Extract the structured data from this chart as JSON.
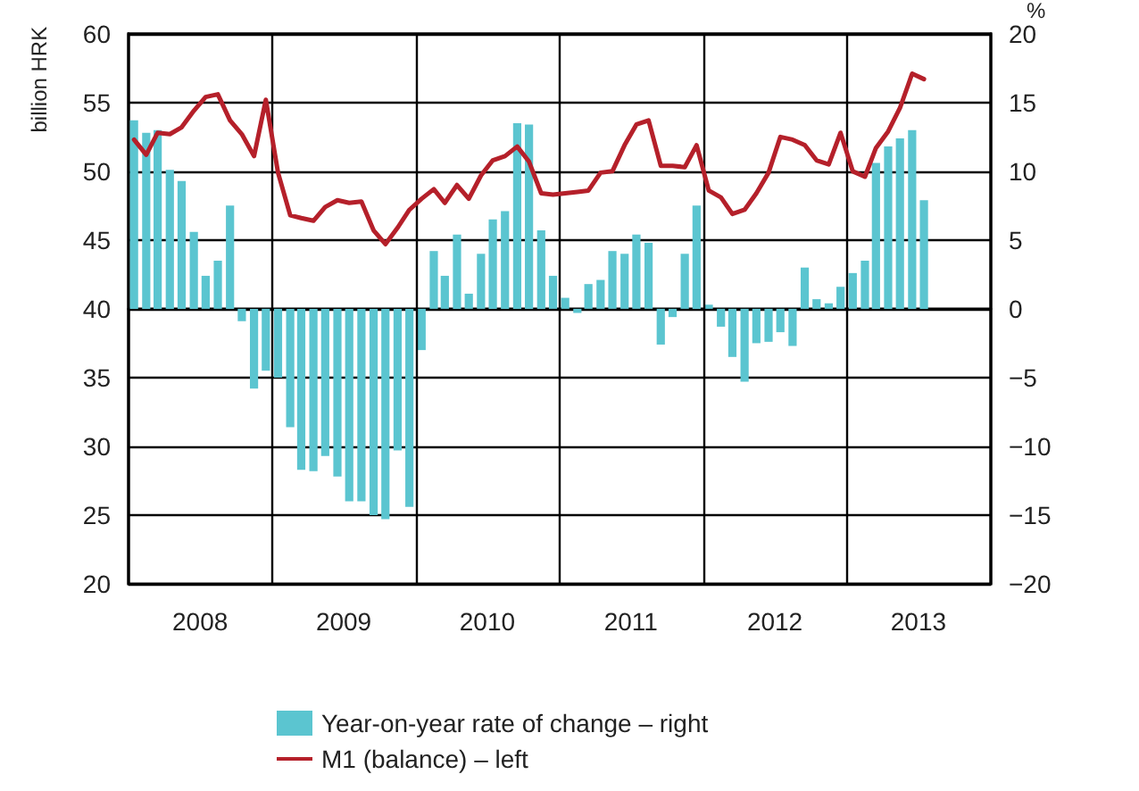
{
  "chart_data": {
    "type": "bar",
    "ylabel": "billion HRK",
    "y2label": "%",
    "x": [
      "2008-01-15",
      "2008-02-15",
      "2008-03-15",
      "2008-04-15",
      "2008-05-15",
      "2008-06-15",
      "2008-07-15",
      "2008-08-15",
      "2008-09-15",
      "2008-10-15",
      "2008-11-15",
      "2008-12-15",
      "2009-01-15",
      "2009-02-15",
      "2009-03-15",
      "2009-04-15",
      "2009-05-15",
      "2009-06-15",
      "2009-07-15",
      "2009-08-15",
      "2009-09-15",
      "2009-10-15",
      "2009-11-15",
      "2009-12-15",
      "2010-01-15",
      "2010-02-15",
      "2010-03-15",
      "2010-04-15",
      "2010-05-15",
      "2010-06-15",
      "2010-07-15",
      "2010-08-15",
      "2010-09-15",
      "2010-10-15",
      "2010-11-15",
      "2010-12-15",
      "2011-01-15",
      "2011-02-15",
      "2011-03-15",
      "2011-04-15",
      "2011-05-15",
      "2011-06-15",
      "2011-07-15",
      "2011-08-15",
      "2011-09-15",
      "2011-10-15",
      "2011-11-15",
      "2011-12-15",
      "2012-01-15",
      "2012-02-15",
      "2012-03-15",
      "2012-04-15",
      "2012-05-15",
      "2012-06-15",
      "2012-07-15",
      "2012-08-15",
      "2012-09-15",
      "2012-10-15",
      "2012-11-15",
      "2012-12-15",
      "2013-01-15",
      "2013-02-15",
      "2013-03-15",
      "2013-04-15",
      "2013-05-15",
      "2013-06-15",
      "2013-07-15"
    ],
    "series": [
      {
        "name": "Year-on-year rate of change – right",
        "axis": "y2",
        "color": "#5bc5d0",
        "values": [
          13.7,
          12.8,
          13.0,
          10.1,
          9.3,
          5.6,
          2.4,
          3.5,
          7.5,
          -0.9,
          -5.8,
          -4.5,
          -5.0,
          -8.6,
          -11.7,
          -11.8,
          -10.7,
          -12.2,
          -14.0,
          -14.0,
          -15.0,
          -15.3,
          -10.3,
          -14.4,
          -3.0,
          4.2,
          2.4,
          5.4,
          1.1,
          4.0,
          6.5,
          7.1,
          13.5,
          13.4,
          5.7,
          2.4,
          0.8,
          -0.3,
          1.8,
          2.1,
          4.2,
          4.0,
          5.4,
          4.8,
          -2.6,
          -0.6,
          4.0,
          7.5,
          0.3,
          -1.3,
          -3.5,
          -5.3,
          -2.5,
          -2.4,
          -1.7,
          -2.7,
          3.0,
          0.7,
          0.4,
          1.6,
          2.6,
          3.5,
          10.6,
          11.8,
          12.4,
          13.0,
          7.9
        ]
      },
      {
        "name": "M1 (balance) – left",
        "type": "line",
        "color": "#b5202a",
        "values": [
          52.3,
          51.2,
          52.8,
          52.7,
          53.2,
          54.4,
          55.4,
          55.6,
          53.7,
          52.7,
          51.1,
          55.2,
          49.9,
          46.8,
          46.6,
          46.4,
          47.4,
          47.9,
          47.7,
          47.8,
          45.7,
          44.7,
          45.9,
          47.2,
          48.0,
          48.7,
          47.7,
          49.0,
          48.0,
          49.7,
          50.8,
          51.1,
          51.8,
          50.7,
          48.4,
          48.3,
          48.4,
          48.5,
          48.6,
          49.9,
          50.0,
          51.9,
          53.4,
          53.7,
          50.4,
          50.4,
          50.3,
          51.9,
          48.6,
          48.1,
          46.9,
          47.2,
          48.4,
          49.9,
          52.5,
          52.3,
          51.9,
          50.8,
          50.5,
          52.8,
          50.0,
          49.6,
          51.7,
          52.9,
          54.6,
          57.1,
          56.7
        ]
      }
    ],
    "xlim": [
      "2008-01-01",
      "2014-01-01"
    ],
    "xticks": [
      {
        "value": "2008-07-01",
        "label": "2008"
      },
      {
        "value": "2009-01-01",
        "label": null
      },
      {
        "value": "2009-07-01",
        "label": "2009"
      },
      {
        "value": "2010-01-01",
        "label": null
      },
      {
        "value": "2010-07-01",
        "label": "2010"
      },
      {
        "value": "2011-01-01",
        "label": null
      },
      {
        "value": "2011-07-01",
        "label": "2011"
      },
      {
        "value": "2012-01-01",
        "label": null
      },
      {
        "value": "2012-07-01",
        "label": "2012"
      },
      {
        "value": "2013-01-01",
        "label": null
      },
      {
        "value": "2013-07-01",
        "label": "2013"
      }
    ],
    "ylim": [
      20,
      60
    ],
    "yticks": [
      20,
      25,
      30,
      35,
      40,
      45,
      50,
      55,
      60
    ],
    "y2lim": [
      -20,
      20
    ],
    "y2ticks": [
      {
        "value": -20,
        "label": "−20"
      },
      {
        "value": -15,
        "label": "−15"
      },
      {
        "value": -10,
        "label": "−10"
      },
      {
        "value": -5,
        "label": "−5"
      },
      0,
      5,
      10,
      15,
      20
    ],
    "grid": true,
    "legend": "bottom"
  }
}
